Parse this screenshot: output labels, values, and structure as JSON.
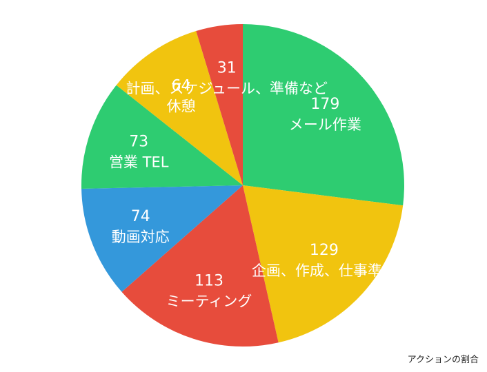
{
  "chart_data": {
    "type": "pie",
    "title": "",
    "caption": "アクションの割合",
    "start_angle_deg": 0,
    "direction": "clockwise",
    "slices": [
      {
        "label": "メール作業",
        "value": 179,
        "color": "#2ecc71"
      },
      {
        "label": "企画、作成、仕事準備",
        "value": 129,
        "color": "#f1c40f"
      },
      {
        "label": "ミーティング",
        "value": 113,
        "color": "#e74c3c"
      },
      {
        "label": "動画対応",
        "value": 74,
        "color": "#3498db"
      },
      {
        "label": "営業 TEL",
        "value": 73,
        "color": "#2ecc71"
      },
      {
        "label": "休憩",
        "value": 64,
        "color": "#f1c40f"
      },
      {
        "label": "計画、スケジュール、準備など",
        "value": 31,
        "color": "#e74c3c"
      }
    ]
  }
}
